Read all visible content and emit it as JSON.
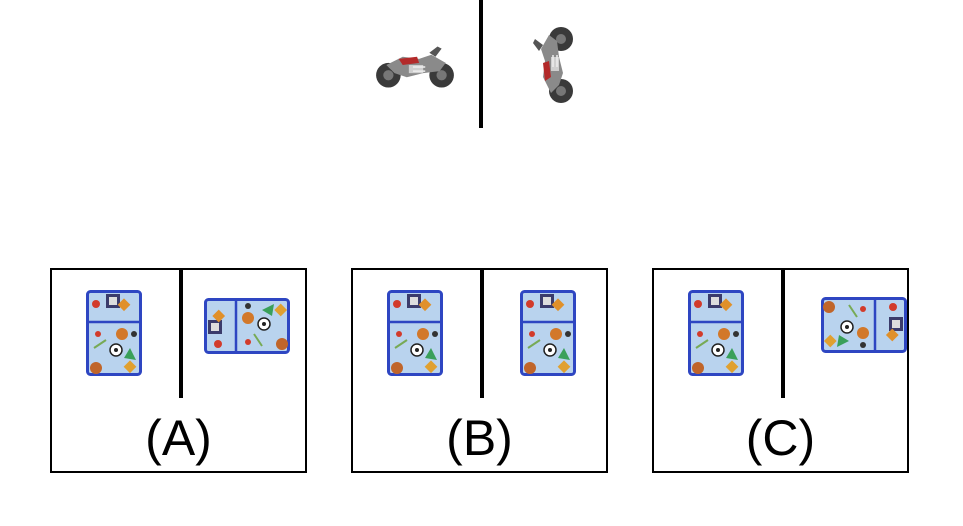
{
  "example": {
    "left_icon": "motorcycle-icon",
    "right_icon": "motorcycle-rotated-icon"
  },
  "options": [
    {
      "label": "(A)",
      "left_icon": "lunch-bag-icon",
      "right_icon": "lunch-bag-rotated-left-icon"
    },
    {
      "label": "(B)",
      "left_icon": "lunch-bag-icon",
      "right_icon": "lunch-bag-icon"
    },
    {
      "label": "(C)",
      "left_icon": "lunch-bag-icon",
      "right_icon": "lunch-bag-rotated-right-icon"
    }
  ]
}
